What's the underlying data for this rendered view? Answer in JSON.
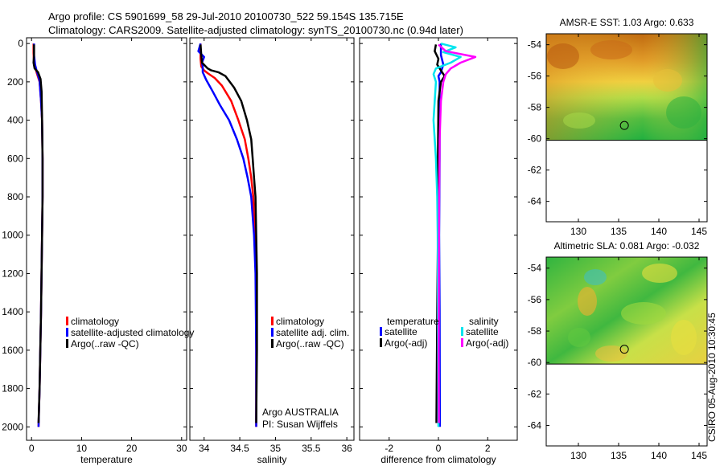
{
  "header": {
    "line1": "Argo profile: CS 5901699_58 29-Jul-2010 20100730_522 59.154S 135.715E",
    "line2": "Climatology: CARS2009. Satellite-adjusted climatology: synTS_20100730.nc (0.94d later)"
  },
  "footer": {
    "stamp": "CSIRO 05-Aug-2010 10:30:45"
  },
  "colors": {
    "red": "#ff0000",
    "blue": "#0000ff",
    "black": "#000000",
    "cyan": "#00e5ee",
    "magenta": "#ff00ff"
  },
  "chart_data": [
    {
      "id": "temp",
      "type": "line",
      "xlabel": "temperature",
      "xlim": [
        -1,
        31
      ],
      "xticks": [
        0,
        10,
        20,
        30
      ],
      "xticklabels": [
        "0",
        "10",
        "20",
        "30"
      ],
      "ylim": [
        2070,
        -30
      ],
      "yticks": [
        0,
        200,
        400,
        600,
        800,
        1000,
        1200,
        1400,
        1600,
        1800,
        2000
      ],
      "yticklabels": [
        "0",
        "200",
        "400",
        "600",
        "800",
        "1000",
        "1200",
        "1400",
        "1600",
        "1800",
        "2000"
      ],
      "legend": [
        "climatology",
        "satellite-adjusted climatology",
        "Argo(..raw -QC)"
      ],
      "series": [
        {
          "name": "climatology",
          "color": "red",
          "points": [
            [
              0.4,
              0
            ],
            [
              0.4,
              50
            ],
            [
              0.5,
              100
            ],
            [
              0.8,
              130
            ],
            [
              1.0,
              150
            ],
            [
              1.3,
              175
            ],
            [
              1.6,
              200
            ],
            [
              1.9,
              300
            ],
            [
              2.1,
              400
            ],
            [
              2.2,
              600
            ],
            [
              2.2,
              800
            ],
            [
              2.1,
              1000
            ],
            [
              1.9,
              1400
            ],
            [
              1.6,
              1800
            ],
            [
              1.4,
              2000
            ]
          ]
        },
        {
          "name": "satellite-adjusted climatology",
          "color": "blue",
          "points": [
            [
              0.5,
              0
            ],
            [
              0.5,
              60
            ],
            [
              0.7,
              110
            ],
            [
              1.0,
              140
            ],
            [
              1.3,
              165
            ],
            [
              1.6,
              195
            ],
            [
              1.9,
              300
            ],
            [
              2.1,
              400
            ],
            [
              2.2,
              600
            ],
            [
              2.2,
              800
            ],
            [
              2.1,
              1000
            ],
            [
              1.9,
              1400
            ],
            [
              1.6,
              1800
            ],
            [
              1.4,
              2000
            ]
          ]
        },
        {
          "name": "Argo(..raw -QC)",
          "color": "black",
          "points": [
            [
              0.5,
              5
            ],
            [
              0.5,
              60
            ],
            [
              0.4,
              100
            ],
            [
              0.6,
              130
            ],
            [
              1.3,
              150
            ],
            [
              1.8,
              185
            ],
            [
              2.0,
              250
            ],
            [
              2.1,
              400
            ],
            [
              2.2,
              600
            ],
            [
              2.2,
              800
            ],
            [
              2.1,
              1000
            ],
            [
              1.9,
              1400
            ],
            [
              1.6,
              1800
            ],
            [
              1.4,
              1980
            ]
          ]
        }
      ]
    },
    {
      "id": "sal",
      "type": "line",
      "xlabel": "salinity",
      "xlim": [
        33.8,
        36.1
      ],
      "xticks": [
        34,
        34.5,
        35,
        35.5,
        36
      ],
      "xticklabels": [
        "34",
        "34.5",
        "35",
        "35.5",
        "36"
      ],
      "ylim": [
        2070,
        -30
      ],
      "yticks": [
        0,
        200,
        400,
        600,
        800,
        1000,
        1200,
        1400,
        1600,
        1800,
        2000
      ],
      "legend": [
        "climatology",
        "satellite adj. clim.",
        "Argo(..raw -QC)"
      ],
      "annotation": [
        "Argo AUSTRALIA",
        "PI: Susan Wijffels"
      ],
      "series": [
        {
          "name": "climatology",
          "color": "red",
          "points": [
            [
              33.95,
              0
            ],
            [
              33.95,
              80
            ],
            [
              33.96,
              120
            ],
            [
              34.0,
              140
            ],
            [
              34.05,
              155
            ],
            [
              34.15,
              180
            ],
            [
              34.25,
              220
            ],
            [
              34.38,
              300
            ],
            [
              34.48,
              400
            ],
            [
              34.57,
              500
            ],
            [
              34.62,
              600
            ],
            [
              34.66,
              700
            ],
            [
              34.69,
              800
            ],
            [
              34.71,
              1000
            ],
            [
              34.73,
              1200
            ],
            [
              34.73,
              1600
            ],
            [
              34.73,
              2000
            ]
          ]
        },
        {
          "name": "satellite adj. clim.",
          "color": "blue",
          "points": [
            [
              33.95,
              0
            ],
            [
              33.92,
              40
            ],
            [
              34.0,
              70
            ],
            [
              33.97,
              100
            ],
            [
              33.98,
              120
            ],
            [
              33.98,
              150
            ],
            [
              34.03,
              190
            ],
            [
              34.12,
              250
            ],
            [
              34.22,
              320
            ],
            [
              34.35,
              400
            ],
            [
              34.46,
              500
            ],
            [
              34.55,
              600
            ],
            [
              34.61,
              700
            ],
            [
              34.66,
              800
            ],
            [
              34.7,
              1000
            ],
            [
              34.72,
              1200
            ],
            [
              34.73,
              1600
            ],
            [
              34.73,
              2000
            ]
          ]
        },
        {
          "name": "Argo(..raw -QC)",
          "color": "black",
          "points": [
            [
              33.95,
              5
            ],
            [
              33.96,
              60
            ],
            [
              33.97,
              100
            ],
            [
              34.05,
              130
            ],
            [
              34.1,
              140
            ],
            [
              34.2,
              150
            ],
            [
              34.3,
              170
            ],
            [
              34.42,
              230
            ],
            [
              34.52,
              300
            ],
            [
              34.6,
              400
            ],
            [
              34.66,
              500
            ],
            [
              34.68,
              600
            ],
            [
              34.7,
              700
            ],
            [
              34.72,
              800
            ],
            [
              34.73,
              1000
            ],
            [
              34.74,
              1200
            ],
            [
              34.74,
              1600
            ],
            [
              34.73,
              1980
            ]
          ]
        }
      ]
    },
    {
      "id": "diff",
      "type": "line",
      "xlabel": "difference from climatology",
      "xlim": [
        -3.2,
        3.2
      ],
      "xticks": [
        -2,
        0,
        2
      ],
      "xticklabels": [
        "-2",
        "0",
        "2"
      ],
      "ylim": [
        2070,
        -30
      ],
      "yticks": [
        0,
        200,
        400,
        600,
        800,
        1000,
        1200,
        1400,
        1600,
        1800,
        2000
      ],
      "legend_temperature_title": "temperature",
      "legend_temperature": [
        "satellite",
        "Argo(-adj)"
      ],
      "legend_salinity_title": "salinity",
      "legend_salinity": [
        "satellite",
        "Argo(-adj)"
      ],
      "series": [
        {
          "name": "temperature satellite",
          "color": "blue",
          "points": [
            [
              0.1,
              0
            ],
            [
              0.1,
              60
            ],
            [
              0.2,
              110
            ],
            [
              0.1,
              150
            ],
            [
              0.0,
              170
            ],
            [
              0.05,
              200
            ],
            [
              0.05,
              600
            ],
            [
              0.03,
              1000
            ],
            [
              0.05,
              1400
            ],
            [
              0.06,
              2000
            ]
          ]
        },
        {
          "name": "temperature Argo(-adj)",
          "color": "black",
          "points": [
            [
              -0.1,
              5
            ],
            [
              -0.15,
              40
            ],
            [
              0.0,
              80
            ],
            [
              -0.05,
              110
            ],
            [
              0.15,
              150
            ],
            [
              0.25,
              170
            ],
            [
              0.1,
              200
            ],
            [
              0.0,
              300
            ],
            [
              -0.02,
              600
            ],
            [
              -0.02,
              1000
            ],
            [
              -0.05,
              1400
            ],
            [
              -0.08,
              1980
            ]
          ]
        },
        {
          "name": "salinity satellite",
          "color": "cyan",
          "points": [
            [
              0.1,
              0
            ],
            [
              0.7,
              20
            ],
            [
              0.2,
              45
            ],
            [
              0.9,
              70
            ],
            [
              0.5,
              100
            ],
            [
              -0.1,
              130
            ],
            [
              -0.2,
              160
            ],
            [
              -0.1,
              200
            ],
            [
              -0.2,
              400
            ],
            [
              -0.1,
              600
            ],
            [
              -0.05,
              800
            ],
            [
              -0.03,
              1000
            ],
            [
              -0.02,
              1400
            ],
            [
              0.0,
              2000
            ]
          ]
        },
        {
          "name": "salinity Argo(-adj)",
          "color": "magenta",
          "points": [
            [
              0.0,
              5
            ],
            [
              0.3,
              40
            ],
            [
              1.5,
              70
            ],
            [
              0.9,
              100
            ],
            [
              0.5,
              130
            ],
            [
              0.3,
              160
            ],
            [
              0.2,
              200
            ],
            [
              0.1,
              300
            ],
            [
              0.05,
              500
            ],
            [
              0.03,
              800
            ],
            [
              0.02,
              1200
            ],
            [
              0.01,
              1600
            ],
            [
              0.02,
              1980
            ]
          ]
        }
      ]
    },
    {
      "id": "sst",
      "type": "heatmap",
      "title": "AMSR-E SST: 1.03 Argo: 0.633",
      "xlim": [
        126,
        146
      ],
      "ylim": [
        -65.3,
        -53.3
      ],
      "xticks": [
        130,
        135,
        140,
        145
      ],
      "yticks": [
        -54,
        -56,
        -58,
        -60,
        -62,
        -64
      ],
      "xticklabels": [
        "130",
        "135",
        "140",
        "145"
      ],
      "yticklabels": [
        "-54",
        "-56",
        "-58",
        "-60",
        "-62",
        "-64"
      ],
      "data_extent_lat": [
        -60.1,
        -53.3
      ],
      "argo_position": [
        135.715,
        -59.154
      ],
      "gradient": [
        "#c06a10",
        "#d98a20",
        "#e8b030",
        "#f0d040",
        "#c8e050",
        "#60c040",
        "#20b040"
      ]
    },
    {
      "id": "sla",
      "type": "heatmap",
      "title": "Altimetric SLA: 0.081 Argo: -0.032",
      "xlim": [
        126,
        146
      ],
      "ylim": [
        -65.3,
        -53.3
      ],
      "xticks": [
        130,
        135,
        140,
        145
      ],
      "yticks": [
        -54,
        -56,
        -58,
        -60,
        -62,
        -64
      ],
      "xticklabels": [
        "130",
        "135",
        "140",
        "145"
      ],
      "yticklabels": [
        "-54",
        "-56",
        "-58",
        "-60",
        "-62",
        "-64"
      ],
      "data_extent_lat": [
        -60.1,
        -53.3
      ],
      "argo_position": [
        135.715,
        -59.154
      ],
      "gradient": [
        "#20b040",
        "#50c040",
        "#a0d840",
        "#e8e040",
        "#f0b030",
        "#40c0c0"
      ]
    }
  ]
}
